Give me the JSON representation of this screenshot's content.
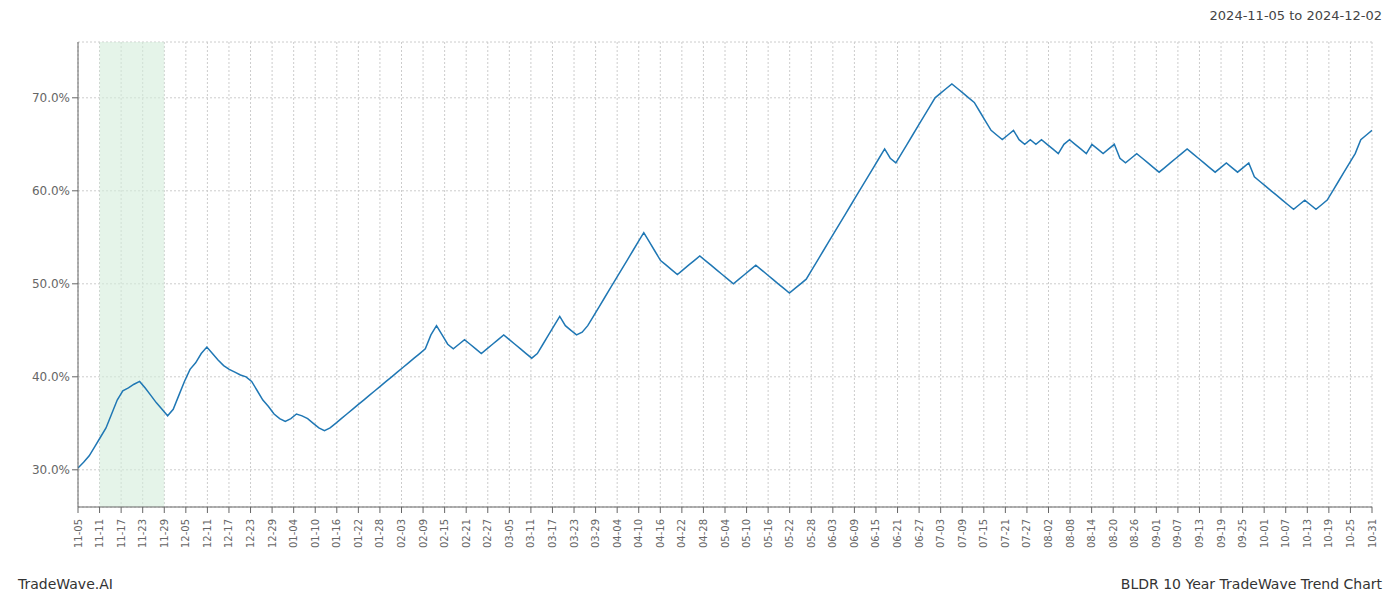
{
  "chart_data": {
    "type": "line",
    "title": "2024-11-05 to 2024-12-02",
    "annotations": [
      "TradeWave.AI",
      "BLDR 10 Year TradeWave Trend Chart"
    ],
    "color": "#1f77b4",
    "grid": true,
    "xlim": [
      0,
      231
    ],
    "xticks": [
      {
        "value": 0,
        "label": "11-05"
      },
      {
        "value": 3.85,
        "label": "11-11"
      },
      {
        "value": 7.7,
        "label": "11-17"
      },
      {
        "value": 11.55,
        "label": "11-23"
      },
      {
        "value": 15.4,
        "label": "11-29"
      },
      {
        "value": 19.25,
        "label": "12-05"
      },
      {
        "value": 23.1,
        "label": "12-11"
      },
      {
        "value": 26.95,
        "label": "12-17"
      },
      {
        "value": 30.8,
        "label": "12-23"
      },
      {
        "value": 34.65,
        "label": "12-29"
      },
      {
        "value": 38.5,
        "label": "01-04"
      },
      {
        "value": 42.35,
        "label": "01-10"
      },
      {
        "value": 46.2,
        "label": "01-16"
      },
      {
        "value": 50.05,
        "label": "01-22"
      },
      {
        "value": 53.9,
        "label": "01-28"
      },
      {
        "value": 57.75,
        "label": "02-03"
      },
      {
        "value": 61.6,
        "label": "02-09"
      },
      {
        "value": 65.45,
        "label": "02-15"
      },
      {
        "value": 69.3,
        "label": "02-21"
      },
      {
        "value": 73.15,
        "label": "02-27"
      },
      {
        "value": 77,
        "label": "03-05"
      },
      {
        "value": 80.85,
        "label": "03-11"
      },
      {
        "value": 84.7,
        "label": "03-17"
      },
      {
        "value": 88.55,
        "label": "03-23"
      },
      {
        "value": 92.4,
        "label": "03-29"
      },
      {
        "value": 96.25,
        "label": "04-04"
      },
      {
        "value": 100.1,
        "label": "04-10"
      },
      {
        "value": 103.95,
        "label": "04-16"
      },
      {
        "value": 107.8,
        "label": "04-22"
      },
      {
        "value": 111.65,
        "label": "04-28"
      },
      {
        "value": 115.5,
        "label": "05-04"
      },
      {
        "value": 119.35,
        "label": "05-10"
      },
      {
        "value": 123.2,
        "label": "05-16"
      },
      {
        "value": 127.05,
        "label": "05-22"
      },
      {
        "value": 130.9,
        "label": "05-28"
      },
      {
        "value": 134.75,
        "label": "06-03"
      },
      {
        "value": 138.6,
        "label": "06-09"
      },
      {
        "value": 142.45,
        "label": "06-15"
      },
      {
        "value": 146.3,
        "label": "06-21"
      },
      {
        "value": 150.15,
        "label": "06-27"
      },
      {
        "value": 154,
        "label": "07-03"
      },
      {
        "value": 157.85,
        "label": "07-09"
      },
      {
        "value": 161.7,
        "label": "07-15"
      },
      {
        "value": 165.55,
        "label": "07-21"
      },
      {
        "value": 169.4,
        "label": "07-27"
      },
      {
        "value": 173.25,
        "label": "08-02"
      },
      {
        "value": 177.1,
        "label": "08-08"
      },
      {
        "value": 180.95,
        "label": "08-14"
      },
      {
        "value": 184.8,
        "label": "08-20"
      },
      {
        "value": 188.65,
        "label": "08-26"
      },
      {
        "value": 192.5,
        "label": "09-01"
      },
      {
        "value": 196.35,
        "label": "09-07"
      },
      {
        "value": 200.2,
        "label": "09-13"
      },
      {
        "value": 204.05,
        "label": "09-19"
      },
      {
        "value": 207.9,
        "label": "09-25"
      },
      {
        "value": 211.75,
        "label": "10-01"
      },
      {
        "value": 215.6,
        "label": "10-07"
      },
      {
        "value": 219.45,
        "label": "10-13"
      },
      {
        "value": 223.3,
        "label": "10-19"
      },
      {
        "value": 227.15,
        "label": "10-25"
      },
      {
        "value": 231,
        "label": "10-31"
      }
    ],
    "ylim": [
      26.0,
      76.0
    ],
    "yticks": [
      {
        "value": 30,
        "label": "30.0%"
      },
      {
        "value": 40,
        "label": "40.0%"
      },
      {
        "value": 50,
        "label": "50.0%"
      },
      {
        "value": 60,
        "label": "60.0%"
      },
      {
        "value": 70,
        "label": "70.0%"
      }
    ],
    "highlight": {
      "from": 3.85,
      "to": 15.4,
      "color": "#d4edda"
    },
    "values": [
      30.2,
      30.8,
      31.5,
      32.5,
      33.5,
      34.5,
      36.0,
      37.5,
      38.5,
      38.8,
      39.2,
      39.5,
      38.8,
      38.0,
      37.2,
      36.5,
      35.8,
      36.5,
      38.0,
      39.5,
      40.8,
      41.5,
      42.5,
      43.2,
      42.5,
      41.8,
      41.2,
      40.8,
      40.5,
      40.2,
      40.0,
      39.5,
      38.5,
      37.5,
      36.8,
      36.0,
      35.5,
      35.2,
      35.5,
      36.0,
      35.8,
      35.5,
      35.0,
      34.5,
      34.2,
      34.5,
      35.0,
      35.5,
      36.0,
      36.5,
      37.0,
      37.5,
      38.0,
      38.5,
      39.0,
      39.5,
      40.0,
      40.5,
      41.0,
      41.5,
      42.0,
      42.5,
      43.0,
      44.5,
      45.5,
      44.5,
      43.5,
      43.0,
      43.5,
      44.0,
      43.5,
      43.0,
      42.5,
      43.0,
      43.5,
      44.0,
      44.5,
      44.0,
      43.5,
      43.0,
      42.5,
      42.0,
      42.5,
      43.5,
      44.5,
      45.5,
      46.5,
      45.5,
      45.0,
      44.5,
      44.8,
      45.5,
      46.5,
      47.5,
      48.5,
      49.5,
      50.5,
      51.5,
      52.5,
      53.5,
      54.5,
      55.5,
      54.5,
      53.5,
      52.5,
      52.0,
      51.5,
      51.0,
      51.5,
      52.0,
      52.5,
      53.0,
      52.5,
      52.0,
      51.5,
      51.0,
      50.5,
      50.0,
      50.5,
      51.0,
      51.5,
      52.0,
      51.5,
      51.0,
      50.5,
      50.0,
      49.5,
      49.0,
      49.5,
      50.0,
      50.5,
      51.5,
      52.5,
      53.5,
      54.5,
      55.5,
      56.5,
      57.5,
      58.5,
      59.5,
      60.5,
      61.5,
      62.5,
      63.5,
      64.5,
      63.5,
      63.0,
      64.0,
      65.0,
      66.0,
      67.0,
      68.0,
      69.0,
      70.0,
      70.5,
      71.0,
      71.5,
      71.0,
      70.5,
      70.0,
      69.5,
      68.5,
      67.5,
      66.5,
      66.0,
      65.5,
      66.0,
      66.5,
      65.5,
      65.0,
      65.5,
      65.0,
      65.5,
      65.0,
      64.5,
      64.0,
      65.0,
      65.5,
      65.0,
      64.5,
      64.0,
      65.0,
      64.5,
      64.0,
      64.5,
      65.0,
      63.5,
      63.0,
      63.5,
      64.0,
      63.5,
      63.0,
      62.5,
      62.0,
      62.5,
      63.0,
      63.5,
      64.0,
      64.5,
      64.0,
      63.5,
      63.0,
      62.5,
      62.0,
      62.5,
      63.0,
      62.5,
      62.0,
      62.5,
      63.0,
      61.5,
      61.0,
      60.5,
      60.0,
      59.5,
      59.0,
      58.5,
      58.0,
      58.5,
      59.0,
      58.5,
      58.0,
      58.5,
      59.0,
      60.0,
      61.0,
      62.0,
      63.0,
      64.0,
      65.5,
      66.0,
      66.5
    ]
  }
}
